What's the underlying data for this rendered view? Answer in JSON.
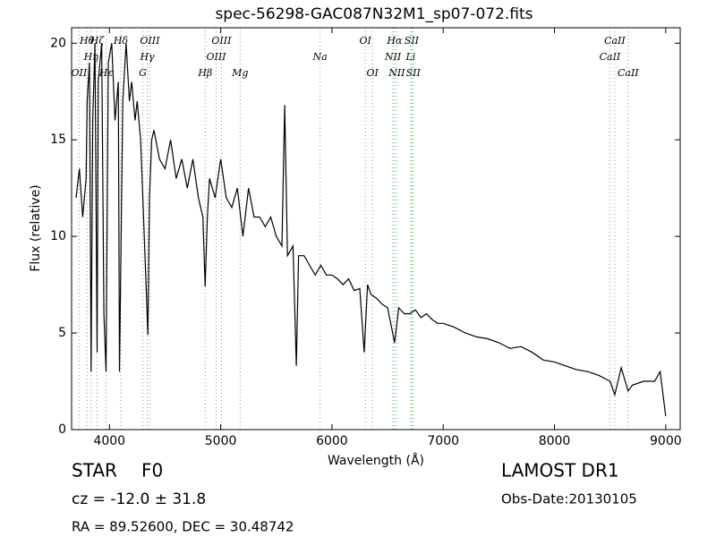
{
  "chart_data": {
    "type": "line",
    "title": "spec-56298-GAC087N32M1_sp07-072.fits",
    "xlabel": "Wavelength (Å)",
    "ylabel": "Flux (relative)",
    "x": [
      3700,
      3730,
      3760,
      3790,
      3800,
      3820,
      3835,
      3850,
      3870,
      3889,
      3900,
      3930,
      3950,
      3970,
      3990,
      4020,
      4050,
      4080,
      4090,
      4120,
      4150,
      4180,
      4200,
      4230,
      4250,
      4280,
      4300,
      4320,
      4345,
      4360,
      4380,
      4400,
      4450,
      4500,
      4550,
      4600,
      4650,
      4700,
      4750,
      4800,
      4840,
      4860,
      4880,
      4900,
      4950,
      5000,
      5050,
      5100,
      5150,
      5200,
      5250,
      5300,
      5350,
      5400,
      5450,
      5500,
      5550,
      5575,
      5600,
      5650,
      5680,
      5700,
      5750,
      5800,
      5850,
      5900,
      5950,
      6000,
      6050,
      6100,
      6150,
      6200,
      6250,
      6290,
      6320,
      6350,
      6400,
      6450,
      6500,
      6563,
      6600,
      6650,
      6700,
      6750,
      6800,
      6850,
      6900,
      6950,
      7000,
      7100,
      7200,
      7300,
      7400,
      7500,
      7600,
      7700,
      7800,
      7900,
      8000,
      8100,
      8200,
      8300,
      8400,
      8500,
      8542,
      8600,
      8662,
      8700,
      8800,
      8900,
      8950,
      9000
    ],
    "values": [
      12,
      13.5,
      11,
      13,
      17,
      19,
      3,
      16,
      20,
      4,
      18,
      20,
      6,
      3,
      19,
      20,
      16,
      18,
      3,
      17,
      20,
      17,
      18,
      16,
      17,
      15,
      12,
      9,
      4.9,
      12,
      15,
      15.5,
      14,
      13.5,
      15,
      13,
      14,
      12.5,
      14,
      12,
      11,
      7.4,
      11,
      13,
      12,
      14,
      12,
      11.5,
      12.5,
      10,
      12.5,
      11,
      11,
      10.5,
      11,
      10,
      9.5,
      16.8,
      9,
      9.5,
      3.3,
      9,
      9,
      8.5,
      8,
      8.5,
      8,
      8,
      7.8,
      7.5,
      7.8,
      7.2,
      7.3,
      4,
      7.5,
      7,
      6.8,
      6.5,
      6.3,
      4.5,
      6.3,
      6,
      6,
      6.2,
      5.8,
      6,
      5.7,
      5.5,
      5.5,
      5.3,
      5,
      4.8,
      4.7,
      4.5,
      4.2,
      4.3,
      4,
      3.6,
      3.5,
      3.3,
      3.1,
      3,
      2.8,
      2.5,
      1.8,
      3.2,
      2,
      2.3,
      2.5,
      2.5,
      3,
      0.7
    ],
    "color": "#000000",
    "xlim": [
      3660,
      9130
    ],
    "ylim": [
      0,
      20.8
    ],
    "xticks": [
      4000,
      5000,
      6000,
      7000,
      8000,
      9000
    ],
    "yticks": [
      0,
      5,
      10,
      15,
      20
    ],
    "annotations": [
      {
        "text": "OII",
        "x": 3727
      },
      {
        "text": "Hθ",
        "x": 3798
      },
      {
        "text": "Hη",
        "x": 3835
      },
      {
        "text": "Hζ",
        "x": 3889
      },
      {
        "text": "Hε",
        "x": 3970
      },
      {
        "text": "Hδ",
        "x": 4102
      },
      {
        "text": "G",
        "x": 4300
      },
      {
        "text": "Hγ",
        "x": 4340
      },
      {
        "text": "OIII",
        "x": 4363
      },
      {
        "text": "Hβ",
        "x": 4861
      },
      {
        "text": "OIII",
        "x": 4959
      },
      {
        "text": "OIII",
        "x": 5007
      },
      {
        "text": "Mg",
        "x": 5175
      },
      {
        "text": "Na",
        "x": 5893
      },
      {
        "text": "OI",
        "x": 6300
      },
      {
        "text": "OI",
        "x": 6364
      },
      {
        "text": "NII",
        "x": 6548
      },
      {
        "text": "Hα",
        "x": 6563
      },
      {
        "text": "NII",
        "x": 6583
      },
      {
        "text": "Li",
        "x": 6708
      },
      {
        "text": "SII",
        "x": 6716
      },
      {
        "text": "SII",
        "x": 6731
      },
      {
        "text": "CaII",
        "x": 8498
      },
      {
        "text": "CaII",
        "x": 8542
      },
      {
        "text": "CaII",
        "x": 8662
      }
    ]
  },
  "info": {
    "class": "STAR",
    "subclass": "F0",
    "cz": "cz = -12.0 ± 31.8",
    "coords": "RA = 89.52600, DEC = 30.48742",
    "survey": "LAMOST DR1",
    "obs_date": "Obs-Date:20130105"
  }
}
